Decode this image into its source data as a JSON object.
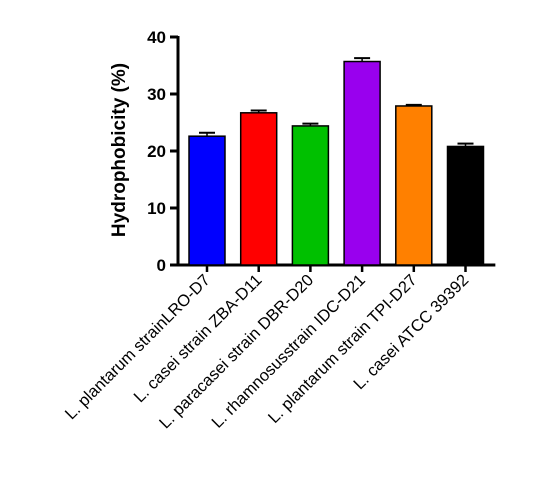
{
  "chart_data": {
    "type": "bar",
    "title": "",
    "xlabel": "",
    "ylabel": "Hydrophobicity (%)",
    "ylim": [
      0,
      40
    ],
    "yticks": [
      0,
      10,
      20,
      30,
      40
    ],
    "grid": false,
    "categories": [
      "L. plantarum strainLRO-D7",
      "L. casei strain ZBA-D11",
      "L. paracasei strain DBR-D20",
      "L. rhamnosusstrain IDC-D21",
      "L. plantarum strain TPI-D27",
      "L. casei ATCC 39392"
    ],
    "values": [
      22.6,
      26.7,
      24.4,
      35.7,
      27.9,
      20.8
    ],
    "errors": [
      0.6,
      0.4,
      0.4,
      0.6,
      0.2,
      0.5
    ],
    "colors": [
      "#0000ff",
      "#ff0000",
      "#00c000",
      "#9900ee",
      "#ff8000",
      "#000000"
    ]
  }
}
